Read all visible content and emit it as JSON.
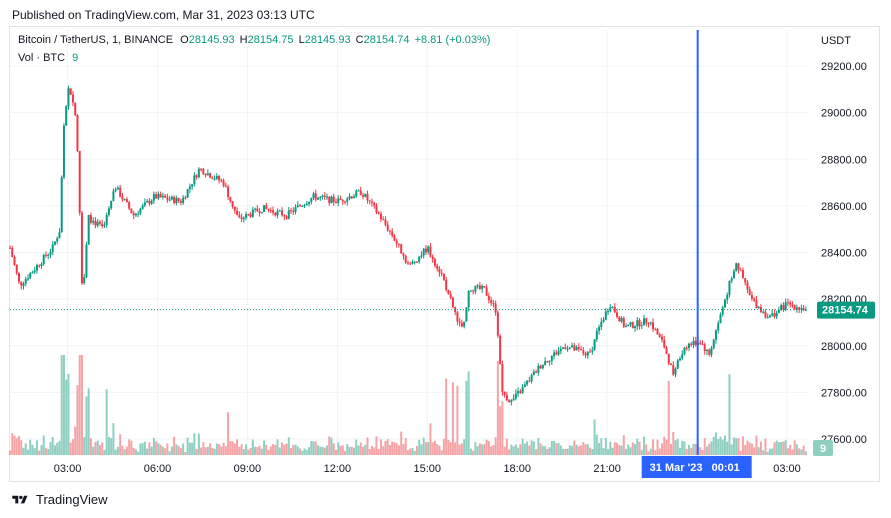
{
  "published": "Published on TradingView.com, Mar 31, 2023 03:13 UTC",
  "legend": {
    "symbol": "Bitcoin / TetherUS, 1, BINANCE",
    "o_label": "O",
    "o_value": "28145.93",
    "h_label": "H",
    "h_value": "28154.75",
    "l_label": "L",
    "l_value": "28145.93",
    "c_label": "C",
    "c_value": "28154.74",
    "change": "+8.81 (+0.03%)",
    "vol_label": "Vol · BTC",
    "vol_value": "9"
  },
  "currency_label": "USDT",
  "price_badge": "28154.74",
  "volume_badge": "9",
  "crosshair_label": "31 Mar '23   00:01",
  "footer_brand": "TradingView",
  "colors": {
    "up": "#089981",
    "down": "#f23645",
    "vol_up": "#8fcfc2",
    "vol_down": "#f6a3a6",
    "crosshair": "#2962ff",
    "grid": "#f0f3fa"
  },
  "icons": {
    "logo": "tradingview-logo-icon"
  },
  "chart_data": {
    "type": "candlestick",
    "title": "Bitcoin / TetherUS, 1, BINANCE",
    "xlabel": "",
    "ylabel": "USDT",
    "ylim": [
      27500,
      29300
    ],
    "y_ticks": [
      27600,
      27800,
      28000,
      28200,
      28400,
      28600,
      28800,
      29000,
      29200
    ],
    "y_tick_labels": [
      "27600.00",
      "27800.00",
      "28000.00",
      "28200.00",
      "28400.00",
      "28600.00",
      "28800.00",
      "29000.00",
      "29200.00"
    ],
    "x_ticks": [
      "03:00",
      "06:00",
      "09:00",
      "12:00",
      "15:00",
      "18:00",
      "21:00",
      "03:00"
    ],
    "x_tick_times": [
      "03:00",
      "06:00",
      "09:00",
      "12:00",
      "15:00",
      "18:00",
      "21:00",
      "03:00"
    ],
    "x_tick_hours": [
      3,
      6,
      9,
      12,
      15,
      18,
      21,
      27
    ],
    "x_range_hours": [
      1.08,
      27.7
    ],
    "crosshair_hours": 24.02,
    "last_price": 28154.74,
    "last_volume": 9,
    "price_path": [
      {
        "t": 1.08,
        "p": 28420
      },
      {
        "t": 1.4,
        "p": 28260
      },
      {
        "t": 1.9,
        "p": 28330
      },
      {
        "t": 2.5,
        "p": 28420
      },
      {
        "t": 2.75,
        "p": 28500
      },
      {
        "t": 2.85,
        "p": 28900
      },
      {
        "t": 3.05,
        "p": 29120
      },
      {
        "t": 3.25,
        "p": 29000
      },
      {
        "t": 3.35,
        "p": 28800
      },
      {
        "t": 3.5,
        "p": 28200
      },
      {
        "t": 3.7,
        "p": 28550
      },
      {
        "t": 4.2,
        "p": 28500
      },
      {
        "t": 4.6,
        "p": 28680
      },
      {
        "t": 5.2,
        "p": 28560
      },
      {
        "t": 5.9,
        "p": 28640
      },
      {
        "t": 6.8,
        "p": 28620
      },
      {
        "t": 7.4,
        "p": 28760
      },
      {
        "t": 8.2,
        "p": 28700
      },
      {
        "t": 8.7,
        "p": 28540
      },
      {
        "t": 9.5,
        "p": 28590
      },
      {
        "t": 10.3,
        "p": 28560
      },
      {
        "t": 11.2,
        "p": 28640
      },
      {
        "t": 12.0,
        "p": 28620
      },
      {
        "t": 12.8,
        "p": 28660
      },
      {
        "t": 13.4,
        "p": 28560
      },
      {
        "t": 13.9,
        "p": 28460
      },
      {
        "t": 14.4,
        "p": 28340
      },
      {
        "t": 15.0,
        "p": 28420
      },
      {
        "t": 15.5,
        "p": 28300
      },
      {
        "t": 15.9,
        "p": 28150
      },
      {
        "t": 16.2,
        "p": 28060
      },
      {
        "t": 16.4,
        "p": 28250
      },
      {
        "t": 16.9,
        "p": 28240
      },
      {
        "t": 17.3,
        "p": 28150
      },
      {
        "t": 17.5,
        "p": 27800
      },
      {
        "t": 17.8,
        "p": 27760
      },
      {
        "t": 18.2,
        "p": 27820
      },
      {
        "t": 18.8,
        "p": 27920
      },
      {
        "t": 19.6,
        "p": 28000
      },
      {
        "t": 20.4,
        "p": 27960
      },
      {
        "t": 20.8,
        "p": 28100
      },
      {
        "t": 21.1,
        "p": 28180
      },
      {
        "t": 21.6,
        "p": 28080
      },
      {
        "t": 22.4,
        "p": 28110
      },
      {
        "t": 22.9,
        "p": 28000
      },
      {
        "t": 23.2,
        "p": 27880
      },
      {
        "t": 23.6,
        "p": 28000
      },
      {
        "t": 24.1,
        "p": 28020
      },
      {
        "t": 24.4,
        "p": 27960
      },
      {
        "t": 24.8,
        "p": 28140
      },
      {
        "t": 25.3,
        "p": 28360
      },
      {
        "t": 25.8,
        "p": 28200
      },
      {
        "t": 26.4,
        "p": 28120
      },
      {
        "t": 27.0,
        "p": 28180
      },
      {
        "t": 27.7,
        "p": 28154.74
      }
    ]
  }
}
